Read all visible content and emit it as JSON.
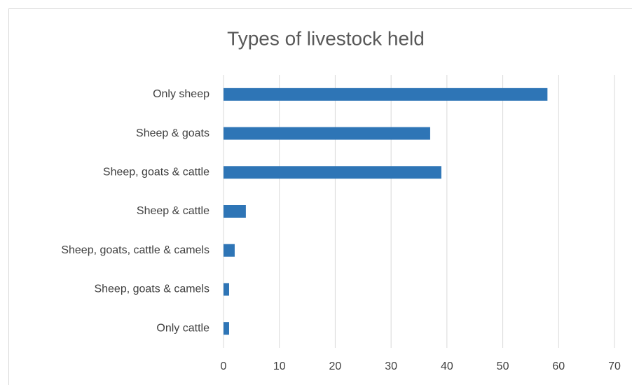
{
  "chart_data": {
    "type": "bar",
    "orientation": "horizontal",
    "title": "Types of livestock held",
    "categories": [
      "Only sheep",
      "Sheep & goats",
      "Sheep, goats & cattle",
      "Sheep & cattle",
      "Sheep, goats, cattle & camels",
      "Sheep, goats & camels",
      "Only cattle"
    ],
    "values": [
      58,
      37,
      39,
      4,
      2,
      1,
      1
    ],
    "color": "#2e75b6",
    "xlim": [
      0,
      70
    ],
    "xticks": [
      0,
      10,
      20,
      30,
      40,
      50,
      60,
      70
    ],
    "grid": true
  }
}
